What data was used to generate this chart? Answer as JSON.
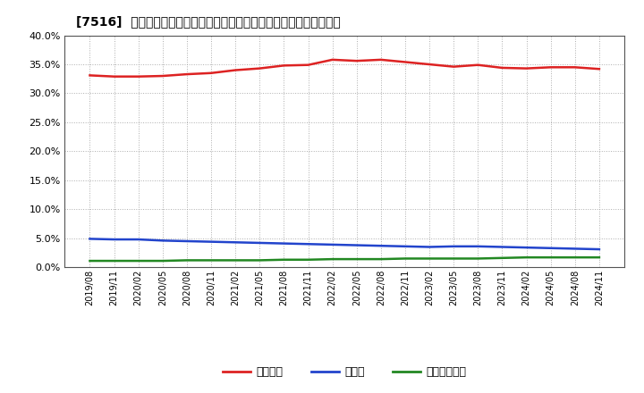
{
  "title": "[7516]  自己資本、のれん、繰延税金資産の総資産に対する比率の推移",
  "title_prefix": "[7516]",
  "x_labels": [
    "2019/08",
    "2019/11",
    "2020/02",
    "2020/05",
    "2020/08",
    "2020/11",
    "2021/02",
    "2021/05",
    "2021/08",
    "2021/11",
    "2022/02",
    "2022/05",
    "2022/08",
    "2022/11",
    "2023/02",
    "2023/05",
    "2023/08",
    "2023/11",
    "2024/02",
    "2024/05",
    "2024/08",
    "2024/11"
  ],
  "equity": [
    33.1,
    32.9,
    32.9,
    33.0,
    33.3,
    33.5,
    34.0,
    34.3,
    34.8,
    34.9,
    35.8,
    35.6,
    35.8,
    35.4,
    35.0,
    34.6,
    34.9,
    34.4,
    34.3,
    34.5,
    34.5,
    34.2
  ],
  "goodwill": [
    4.9,
    4.8,
    4.8,
    4.6,
    4.5,
    4.4,
    4.3,
    4.2,
    4.1,
    4.0,
    3.9,
    3.8,
    3.7,
    3.6,
    3.5,
    3.6,
    3.6,
    3.5,
    3.4,
    3.3,
    3.2,
    3.1
  ],
  "deferred_tax": [
    1.1,
    1.1,
    1.1,
    1.1,
    1.2,
    1.2,
    1.2,
    1.2,
    1.3,
    1.3,
    1.4,
    1.4,
    1.4,
    1.5,
    1.5,
    1.5,
    1.5,
    1.6,
    1.7,
    1.7,
    1.7,
    1.7
  ],
  "equity_color": "#dd2222",
  "goodwill_color": "#2244cc",
  "deferred_tax_color": "#228822",
  "bg_color": "#ffffff",
  "plot_bg_color": "#ffffff",
  "grid_color": "#999999",
  "legend_equity": "自己資本",
  "legend_goodwill": "のれん",
  "legend_deferred": "繰延税金資産",
  "ylim": [
    0.0,
    40.0
  ],
  "yticks": [
    0.0,
    5.0,
    10.0,
    15.0,
    20.0,
    25.0,
    30.0,
    35.0,
    40.0
  ]
}
